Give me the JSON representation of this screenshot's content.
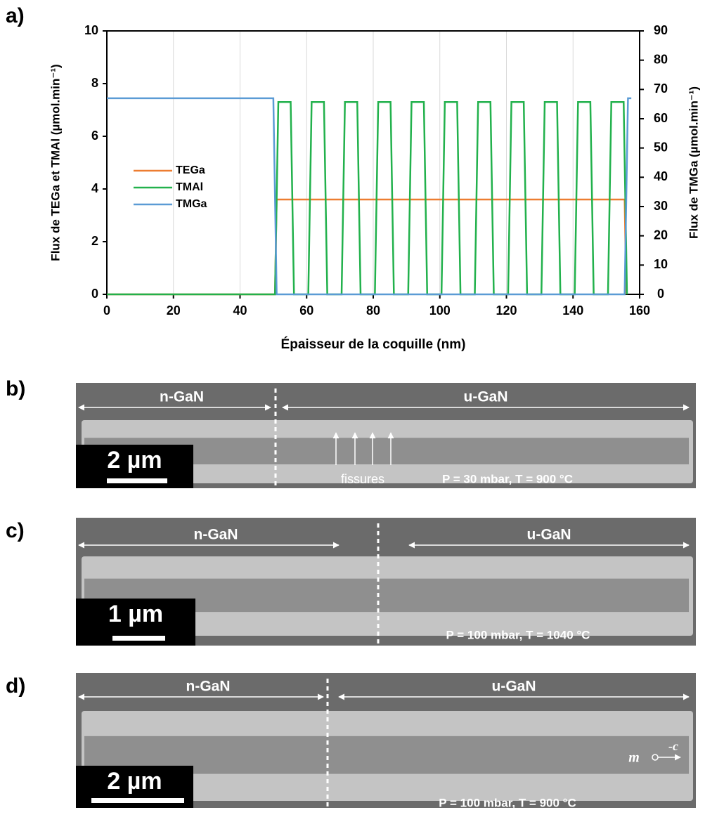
{
  "chart_data": {
    "type": "line",
    "panel_label": "a)",
    "xlabel": "Épaisseur de la coquille (nm)",
    "ylabel": "Flux de TEGa et TMAl (µmol.min⁻¹)",
    "y2label": "Flux de TMGa (µmol.min⁻¹)",
    "xlim": [
      0,
      160
    ],
    "xticks": [
      0,
      20,
      40,
      60,
      80,
      100,
      120,
      140,
      160
    ],
    "ylim": [
      0,
      10
    ],
    "yticks": [
      0,
      2,
      4,
      6,
      8,
      10
    ],
    "y2lim": [
      0,
      90
    ],
    "y2ticks": [
      0,
      10,
      20,
      30,
      40,
      50,
      60,
      70,
      80,
      90
    ],
    "grid": "x",
    "legend": "left",
    "series": [
      {
        "name": "TEGa",
        "color": "#ed7d31",
        "x": [
          0,
          50.5,
          51,
          155.5,
          156
        ],
        "values": [
          0,
          0,
          3.6,
          3.6,
          0
        ]
      },
      {
        "name": "TMAl",
        "color": "#22b14c",
        "x": [
          0,
          50.5,
          51.5,
          55.2,
          56.2,
          60.5,
          61.5,
          65.2,
          66.2,
          70.5,
          71.5,
          75.2,
          76.2,
          80.5,
          81.5,
          85.2,
          86.2,
          90.5,
          91.5,
          95.2,
          96.2,
          100.5,
          101.5,
          105.2,
          106.2,
          110.5,
          111.5,
          115.2,
          116.2,
          120.5,
          121.5,
          125.2,
          126.2,
          130.5,
          131.5,
          135.2,
          136.2,
          140.5,
          141.5,
          145.2,
          146.2,
          150.5,
          151.5,
          155.2,
          156.2
        ],
        "values": [
          0,
          0,
          7.3,
          7.3,
          0,
          0,
          7.3,
          7.3,
          0,
          0,
          7.3,
          7.3,
          0,
          0,
          7.3,
          7.3,
          0,
          0,
          7.3,
          7.3,
          0,
          0,
          7.3,
          7.3,
          0,
          0,
          7.3,
          7.3,
          0,
          0,
          7.3,
          7.3,
          0,
          0,
          7.3,
          7.3,
          0,
          0,
          7.3,
          7.3,
          0,
          0,
          7.3,
          7.3,
          0
        ]
      },
      {
        "name": "TMGa",
        "color": "#5b9bd5",
        "axis": "y2",
        "x": [
          0,
          50,
          51,
          155.5,
          156.5,
          157.5
        ],
        "values": [
          67,
          67,
          0,
          0,
          67,
          67
        ]
      }
    ]
  },
  "panels": [
    {
      "label": "b)",
      "left": "n-GaN",
      "right": "u-GaN",
      "scale": "2 µm",
      "note": "fissures",
      "conditions": "P = 30 mbar, T = 900 °C"
    },
    {
      "label": "c)",
      "left": "n-GaN",
      "right": "u-GaN",
      "scale": "1 µm",
      "conditions": "P = 100 mbar, T = 1040 °C"
    },
    {
      "label": "d)",
      "left": "n-GaN",
      "right": "u-GaN",
      "scale": "2 µm",
      "conditions": "P = 100 mbar, T = 900 °C",
      "vec1": "m",
      "vec2": "-c"
    }
  ]
}
